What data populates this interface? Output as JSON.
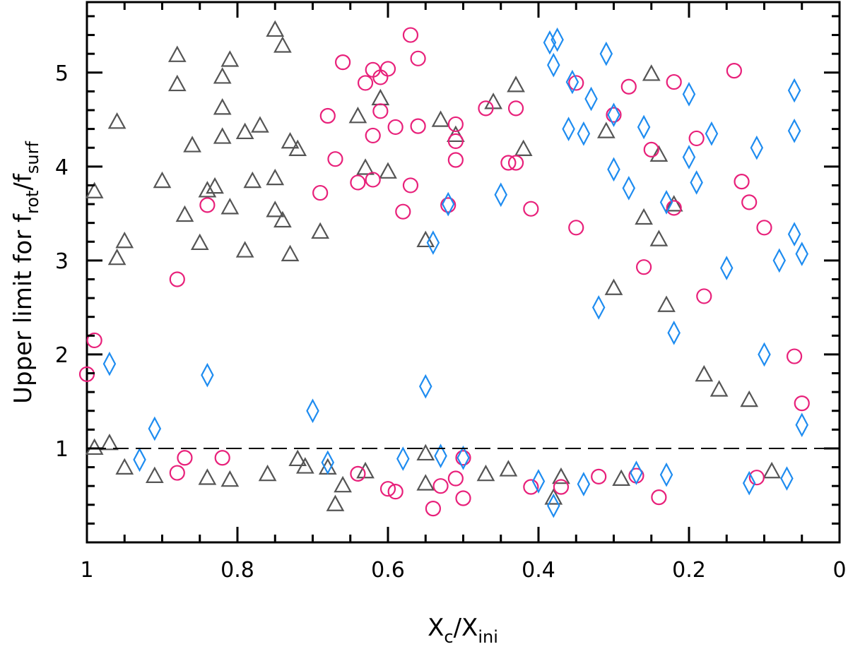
{
  "chart_data": {
    "type": "scatter",
    "title": "",
    "xlabel": {
      "main": "X",
      "sub1": "c",
      "sep": "/X",
      "sub2": "ini"
    },
    "ylabel": {
      "prefix": "Upper limit for f",
      "sub1": "rot",
      "sep": "/f",
      "sub2": "surf"
    },
    "xlim": [
      1,
      0
    ],
    "ylim": [
      0,
      5.75
    ],
    "x_ticks": [
      {
        "v": 1,
        "label": "1"
      },
      {
        "v": 0.8,
        "label": "0.8"
      },
      {
        "v": 0.6,
        "label": "0.6"
      },
      {
        "v": 0.4,
        "label": "0.4"
      },
      {
        "v": 0.2,
        "label": "0.2"
      },
      {
        "v": 0,
        "label": "0"
      }
    ],
    "y_ticks": [
      {
        "v": 1,
        "label": "1"
      },
      {
        "v": 2,
        "label": "2"
      },
      {
        "v": 3,
        "label": "3"
      },
      {
        "v": 4,
        "label": "4"
      },
      {
        "v": 5,
        "label": "5"
      }
    ],
    "reference_line": {
      "y": 1,
      "style": "dashed",
      "color": "#000000"
    },
    "grid": false,
    "legend": "none",
    "series": [
      {
        "marker": "triangle",
        "color": "#555555",
        "points": [
          [
            0.75,
            5.45
          ],
          [
            0.74,
            5.28
          ],
          [
            0.88,
            5.18
          ],
          [
            0.81,
            5.13
          ],
          [
            0.88,
            4.87
          ],
          [
            0.82,
            4.95
          ],
          [
            0.82,
            4.62
          ],
          [
            0.96,
            4.47
          ],
          [
            0.77,
            4.43
          ],
          [
            0.79,
            4.36
          ],
          [
            0.82,
            4.31
          ],
          [
            0.73,
            4.26
          ],
          [
            0.72,
            4.18
          ],
          [
            0.86,
            4.22
          ],
          [
            0.75,
            3.87
          ],
          [
            0.9,
            3.84
          ],
          [
            0.78,
            3.84
          ],
          [
            0.83,
            3.78
          ],
          [
            0.84,
            3.74
          ],
          [
            0.99,
            3.73
          ],
          [
            0.81,
            3.56
          ],
          [
            0.75,
            3.53
          ],
          [
            0.87,
            3.48
          ],
          [
            0.74,
            3.42
          ],
          [
            0.95,
            3.2
          ],
          [
            0.96,
            3.02
          ],
          [
            0.85,
            3.18
          ],
          [
            0.79,
            3.1
          ],
          [
            0.73,
            3.06
          ],
          [
            0.69,
            3.3
          ],
          [
            0.61,
            4.72
          ],
          [
            0.64,
            4.53
          ],
          [
            0.53,
            4.49
          ],
          [
            0.51,
            4.33
          ],
          [
            0.63,
            3.98
          ],
          [
            0.6,
            3.94
          ],
          [
            0.55,
            3.21
          ],
          [
            0.42,
            4.18
          ],
          [
            0.46,
            4.68
          ],
          [
            0.43,
            4.86
          ],
          [
            0.25,
            4.98
          ],
          [
            0.31,
            4.37
          ],
          [
            0.24,
            4.12
          ],
          [
            0.22,
            3.59
          ],
          [
            0.26,
            3.45
          ],
          [
            0.24,
            3.22
          ],
          [
            0.3,
            2.7
          ],
          [
            0.23,
            2.52
          ],
          [
            0.37,
            0.69
          ],
          [
            0.38,
            0.47
          ],
          [
            0.29,
            0.67
          ],
          [
            0.09,
            0.75
          ],
          [
            0.12,
            1.51
          ],
          [
            0.18,
            1.78
          ],
          [
            0.16,
            1.62
          ],
          [
            0.55,
            0.94
          ],
          [
            0.63,
            0.75
          ],
          [
            0.68,
            0.79
          ],
          [
            0.71,
            0.8
          ],
          [
            0.76,
            0.72
          ],
          [
            0.81,
            0.66
          ],
          [
            0.84,
            0.68
          ],
          [
            0.91,
            0.7
          ],
          [
            0.95,
            0.79
          ],
          [
            0.99,
            1.0
          ],
          [
            0.97,
            1.05
          ],
          [
            0.67,
            0.4
          ],
          [
            0.72,
            0.88
          ],
          [
            0.66,
            0.6
          ],
          [
            0.55,
            0.62
          ],
          [
            0.47,
            0.72
          ],
          [
            0.44,
            0.77
          ]
        ]
      },
      {
        "marker": "circle",
        "color": "#e8207a",
        "points": [
          [
            0.57,
            5.4
          ],
          [
            0.66,
            5.11
          ],
          [
            0.6,
            5.04
          ],
          [
            0.62,
            5.03
          ],
          [
            0.56,
            5.15
          ],
          [
            0.61,
            4.95
          ],
          [
            0.63,
            4.89
          ],
          [
            0.61,
            4.59
          ],
          [
            0.59,
            4.42
          ],
          [
            0.56,
            4.43
          ],
          [
            0.68,
            4.54
          ],
          [
            0.62,
            4.33
          ],
          [
            0.51,
            4.45
          ],
          [
            0.47,
            4.62
          ],
          [
            0.43,
            4.62
          ],
          [
            0.51,
            4.27
          ],
          [
            0.67,
            4.08
          ],
          [
            0.64,
            3.83
          ],
          [
            0.62,
            3.86
          ],
          [
            0.57,
            3.8
          ],
          [
            0.51,
            4.07
          ],
          [
            0.44,
            4.04
          ],
          [
            0.43,
            4.04
          ],
          [
            0.35,
            4.89
          ],
          [
            0.28,
            4.85
          ],
          [
            0.22,
            4.9
          ],
          [
            0.14,
            5.02
          ],
          [
            0.3,
            4.55
          ],
          [
            0.19,
            4.3
          ],
          [
            0.25,
            4.18
          ],
          [
            0.13,
            3.84
          ],
          [
            0.12,
            3.62
          ],
          [
            0.69,
            3.72
          ],
          [
            0.58,
            3.52
          ],
          [
            0.52,
            3.59
          ],
          [
            0.41,
            3.55
          ],
          [
            0.35,
            3.35
          ],
          [
            0.22,
            3.56
          ],
          [
            0.84,
            3.59
          ],
          [
            0.88,
            2.8
          ],
          [
            0.99,
            2.15
          ],
          [
            1.0,
            1.79
          ],
          [
            0.82,
            0.9
          ],
          [
            0.87,
            0.9
          ],
          [
            0.88,
            0.74
          ],
          [
            0.64,
            0.73
          ],
          [
            0.6,
            0.57
          ],
          [
            0.59,
            0.54
          ],
          [
            0.51,
            0.68
          ],
          [
            0.5,
            0.9
          ],
          [
            0.53,
            0.6
          ],
          [
            0.54,
            0.36
          ],
          [
            0.5,
            0.47
          ],
          [
            0.41,
            0.59
          ],
          [
            0.37,
            0.59
          ],
          [
            0.32,
            0.7
          ],
          [
            0.24,
            0.48
          ],
          [
            0.27,
            0.71
          ],
          [
            0.11,
            0.69
          ],
          [
            0.1,
            3.35
          ],
          [
            0.05,
            1.48
          ],
          [
            0.06,
            1.98
          ],
          [
            0.18,
            2.62
          ],
          [
            0.26,
            2.93
          ]
        ]
      },
      {
        "marker": "diamond",
        "color": "#1e8cf0",
        "points": [
          [
            0.385,
            5.32
          ],
          [
            0.375,
            5.35
          ],
          [
            0.38,
            5.08
          ],
          [
            0.31,
            5.2
          ],
          [
            0.355,
            4.9
          ],
          [
            0.33,
            4.72
          ],
          [
            0.2,
            4.77
          ],
          [
            0.06,
            4.81
          ],
          [
            0.06,
            4.38
          ],
          [
            0.3,
            4.55
          ],
          [
            0.36,
            4.4
          ],
          [
            0.34,
            4.35
          ],
          [
            0.26,
            4.42
          ],
          [
            0.17,
            4.35
          ],
          [
            0.11,
            4.2
          ],
          [
            0.2,
            4.1
          ],
          [
            0.3,
            3.97
          ],
          [
            0.28,
            3.77
          ],
          [
            0.23,
            3.62
          ],
          [
            0.19,
            3.83
          ],
          [
            0.06,
            3.28
          ],
          [
            0.05,
            3.07
          ],
          [
            0.15,
            2.92
          ],
          [
            0.08,
            3.0
          ],
          [
            0.32,
            2.5
          ],
          [
            0.22,
            2.23
          ],
          [
            0.45,
            3.7
          ],
          [
            0.52,
            3.6
          ],
          [
            0.54,
            3.19
          ],
          [
            0.55,
            1.66
          ],
          [
            0.7,
            1.4
          ],
          [
            0.97,
            1.9
          ],
          [
            0.84,
            1.78
          ],
          [
            0.91,
            1.21
          ],
          [
            0.93,
            0.88
          ],
          [
            0.68,
            0.85
          ],
          [
            0.58,
            0.89
          ],
          [
            0.53,
            0.92
          ],
          [
            0.5,
            0.9
          ],
          [
            0.4,
            0.65
          ],
          [
            0.38,
            0.39
          ],
          [
            0.34,
            0.62
          ],
          [
            0.27,
            0.74
          ],
          [
            0.23,
            0.72
          ],
          [
            0.12,
            0.63
          ],
          [
            0.07,
            0.68
          ],
          [
            0.05,
            1.25
          ],
          [
            0.1,
            2.0
          ]
        ]
      }
    ]
  }
}
